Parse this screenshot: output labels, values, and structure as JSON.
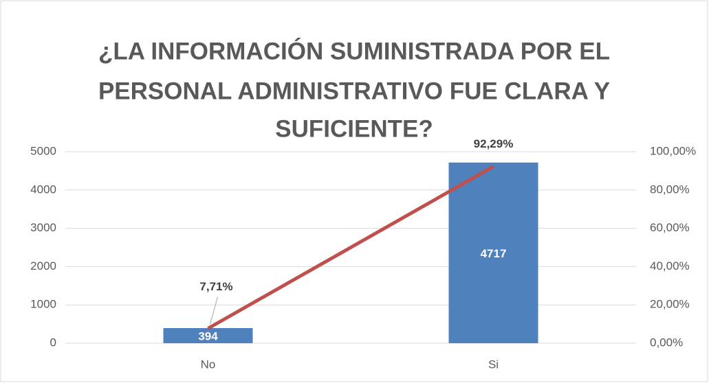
{
  "chart_data": {
    "type": "bar",
    "title": [
      "¿LA INFORMACIÓN SUMINISTRADA POR EL",
      "PERSONAL ADMINISTRATIVO FUE CLARA Y",
      "SUFICIENTE?"
    ],
    "categories": [
      "No",
      "Si"
    ],
    "series": [
      {
        "type": "bar",
        "color": "#4f81bd",
        "values": [
          394,
          4717
        ]
      },
      {
        "type": "line",
        "axis": "y2",
        "color": "#c0504d",
        "values": [
          7.71,
          92.29
        ],
        "value_labels": [
          "7,71%",
          "92,29%"
        ]
      }
    ],
    "ylim": [
      0,
      5000
    ],
    "yticks": [
      0,
      1000,
      2000,
      3000,
      4000,
      5000
    ],
    "y2lim": [
      0,
      100
    ],
    "y2ticks": [
      {
        "value": 0,
        "label": "0,00%"
      },
      {
        "value": 20,
        "label": "20,00%"
      },
      {
        "value": 40,
        "label": "40,00%"
      },
      {
        "value": 60,
        "label": "60,00%"
      },
      {
        "value": 80,
        "label": "80,00%"
      },
      {
        "value": 100,
        "label": "100,00%"
      }
    ],
    "grid": true
  }
}
